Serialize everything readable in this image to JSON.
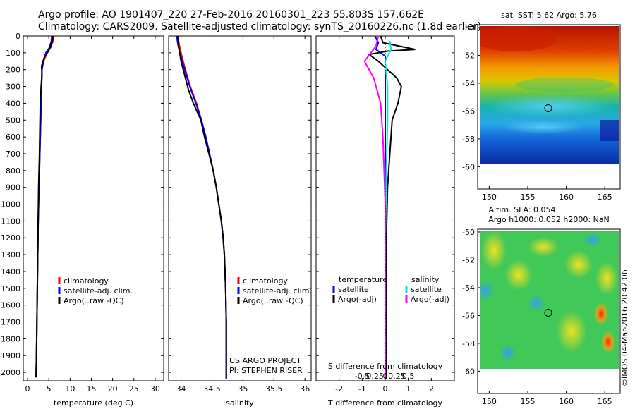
{
  "header": {
    "line1": "Argo profile: AO 1901407_220 27-Feb-2016 20160301_223 55.803S 157.662E",
    "line2": "Climatology: CARS2009. Satellite-adjusted climatology: synTS_20160226.nc (1.8d earlier)"
  },
  "side_stamp": "©IMOS 04-Mar-2016 20:42:06",
  "colors": {
    "climatology": "#ff0000",
    "satellite": "#0000ff",
    "argo": "#000000",
    "salinity_satellite": "#00e5e5",
    "salinity_argo": "#ff00ff"
  },
  "chart_data": [
    {
      "type": "line",
      "panel": "temperature",
      "xlabel": "temperature (deg C)",
      "ylabel": "",
      "xlim": [
        -1,
        32
      ],
      "ylim": [
        2050,
        0
      ],
      "xticks": [
        0,
        5,
        10,
        15,
        20,
        25,
        30
      ],
      "xtick_labels": [
        "0",
        "5",
        "10",
        "15",
        "20",
        "25",
        "30"
      ],
      "yticks": [
        0,
        100,
        200,
        300,
        400,
        500,
        600,
        700,
        800,
        900,
        1000,
        1100,
        1200,
        1300,
        1400,
        1500,
        1600,
        1700,
        1800,
        1900,
        2000
      ],
      "ytick_labels": [
        "0",
        "100",
        "200",
        "300",
        "400",
        "500",
        "600",
        "700",
        "800",
        "900",
        "1000",
        "1100",
        "1200",
        "1300",
        "1400",
        "1500",
        "1600",
        "1700",
        "1800",
        "1900",
        "2000"
      ],
      "legend": [
        "climatology",
        "satellite-adj. clim.",
        "Argo(..raw -QC)"
      ],
      "series": [
        {
          "name": "climatology",
          "color": "#ff0000",
          "points": [
            [
              6.2,
              0
            ],
            [
              6.0,
              30
            ],
            [
              5.4,
              70
            ],
            [
              4.6,
              100
            ],
            [
              3.8,
              150
            ],
            [
              3.4,
              200
            ],
            [
              3.3,
              300
            ],
            [
              3.1,
              500
            ],
            [
              2.9,
              700
            ],
            [
              2.7,
              900
            ],
            [
              2.5,
              1100
            ],
            [
              2.4,
              1300
            ],
            [
              2.3,
              1500
            ],
            [
              2.2,
              1700
            ],
            [
              2.1,
              1900
            ],
            [
              2.0,
              2020
            ]
          ]
        },
        {
          "name": "satellite-adj. clim.",
          "color": "#0000ff",
          "points": [
            [
              5.7,
              0
            ],
            [
              5.6,
              30
            ],
            [
              5.1,
              70
            ],
            [
              4.3,
              100
            ],
            [
              3.7,
              150
            ],
            [
              3.4,
              200
            ],
            [
              3.3,
              300
            ],
            [
              3.1,
              500
            ],
            [
              2.9,
              700
            ],
            [
              2.7,
              900
            ],
            [
              2.5,
              1100
            ],
            [
              2.4,
              1300
            ],
            [
              2.3,
              1500
            ],
            [
              2.2,
              1700
            ],
            [
              2.1,
              1900
            ],
            [
              2.0,
              2030
            ]
          ]
        },
        {
          "name": "Argo(..raw -QC)",
          "color": "#000000",
          "points": [
            [
              6.0,
              0
            ],
            [
              5.8,
              30
            ],
            [
              5.5,
              60
            ],
            [
              4.9,
              90
            ],
            [
              3.9,
              130
            ],
            [
              3.3,
              180
            ],
            [
              3.4,
              230
            ],
            [
              3.2,
              300
            ],
            [
              3.0,
              400
            ],
            [
              2.9,
              550
            ],
            [
              2.8,
              700
            ],
            [
              2.6,
              900
            ],
            [
              2.5,
              1100
            ],
            [
              2.4,
              1300
            ],
            [
              2.3,
              1500
            ],
            [
              2.2,
              1700
            ],
            [
              2.1,
              1900
            ],
            [
              2.0,
              2030
            ]
          ]
        }
      ]
    },
    {
      "type": "line",
      "panel": "salinity",
      "xlabel": "salinity",
      "xlim": [
        33.8,
        36.1
      ],
      "ylim": [
        2050,
        0
      ],
      "xticks": [
        34,
        34.5,
        35,
        35.5,
        36
      ],
      "xtick_labels": [
        "34",
        "34.5",
        "35",
        "35.5",
        "36"
      ],
      "legend": [
        "climatology",
        "satellite-adj. clim.",
        "Argo(..raw -QC)"
      ],
      "annotation": [
        "US ARGO PROJECT",
        "PI: STEPHEN RISER"
      ],
      "series": [
        {
          "name": "climatology",
          "color": "#ff0000",
          "points": [
            [
              33.95,
              0
            ],
            [
              33.97,
              50
            ],
            [
              34.0,
              100
            ],
            [
              34.07,
              200
            ],
            [
              34.15,
              300
            ],
            [
              34.25,
              400
            ],
            [
              34.33,
              500
            ],
            [
              34.4,
              600
            ],
            [
              34.46,
              700
            ],
            [
              34.52,
              800
            ],
            [
              34.57,
              900
            ],
            [
              34.61,
              1000
            ],
            [
              34.65,
              1100
            ],
            [
              34.68,
              1200
            ],
            [
              34.7,
              1300
            ],
            [
              34.71,
              1400
            ],
            [
              34.72,
              1500
            ],
            [
              34.73,
              1700
            ],
            [
              34.73,
              2030
            ]
          ]
        },
        {
          "name": "satellite-adj. clim.",
          "color": "#0000ff",
          "points": [
            [
              33.93,
              0
            ],
            [
              33.95,
              50
            ],
            [
              33.98,
              100
            ],
            [
              34.06,
              200
            ],
            [
              34.14,
              300
            ],
            [
              34.24,
              400
            ],
            [
              34.33,
              500
            ],
            [
              34.4,
              600
            ],
            [
              34.46,
              700
            ],
            [
              34.52,
              800
            ],
            [
              34.57,
              900
            ],
            [
              34.61,
              1000
            ],
            [
              34.65,
              1100
            ],
            [
              34.68,
              1200
            ],
            [
              34.7,
              1300
            ],
            [
              34.71,
              1400
            ],
            [
              34.72,
              1500
            ],
            [
              34.73,
              1700
            ],
            [
              34.73,
              2040
            ]
          ]
        },
        {
          "name": "Argo(..raw -QC)",
          "color": "#000000",
          "points": [
            [
              33.95,
              0
            ],
            [
              33.96,
              60
            ],
            [
              34.0,
              150
            ],
            [
              34.05,
              220
            ],
            [
              34.12,
              320
            ],
            [
              34.2,
              400
            ],
            [
              34.32,
              500
            ],
            [
              34.38,
              600
            ],
            [
              34.45,
              700
            ],
            [
              34.52,
              800
            ],
            [
              34.57,
              900
            ],
            [
              34.61,
              1000
            ],
            [
              34.65,
              1100
            ],
            [
              34.68,
              1200
            ],
            [
              34.7,
              1300
            ],
            [
              34.71,
              1400
            ],
            [
              34.72,
              1500
            ],
            [
              34.73,
              1700
            ],
            [
              34.73,
              2040
            ]
          ]
        }
      ]
    },
    {
      "type": "line",
      "panel": "difference",
      "xlabel": "T difference from climatology",
      "xlabel_top": "S difference from climatology",
      "xlim": [
        -3,
        3
      ],
      "ylim": [
        2050,
        0
      ],
      "xticks": [
        -2,
        -1,
        0,
        1,
        2
      ],
      "xtick_labels": [
        "-2",
        "-1",
        "0",
        "1",
        "2"
      ],
      "sticks": [
        -1,
        -0.5,
        0,
        0.5,
        1
      ],
      "stick_labels": [
        "-0.5",
        "-0.25",
        "0",
        "0.25",
        "0.5"
      ],
      "legend_temperature": {
        "title": "temperature",
        "items": [
          "satellite",
          "Argo(-adj)"
        ]
      },
      "legend_salinity": {
        "title": "salinity",
        "items": [
          "satellite",
          "Argo(-adj)"
        ]
      },
      "series": [
        {
          "name": "T satellite",
          "color": "#0000ff",
          "points": [
            [
              -0.45,
              0
            ],
            [
              -0.3,
              40
            ],
            [
              -0.4,
              80
            ],
            [
              0.0,
              120
            ],
            [
              0.0,
              300
            ],
            [
              0.0,
              800
            ],
            [
              0.0,
              1500
            ],
            [
              0.0,
              2040
            ]
          ]
        },
        {
          "name": "T Argo(-adj)",
          "color": "#000000",
          "points": [
            [
              -0.2,
              0
            ],
            [
              -0.1,
              40
            ],
            [
              1.3,
              80
            ],
            [
              0.1,
              90
            ],
            [
              -0.7,
              110
            ],
            [
              -0.3,
              150
            ],
            [
              0.5,
              250
            ],
            [
              0.7,
              300
            ],
            [
              0.55,
              400
            ],
            [
              0.3,
              500
            ],
            [
              0.2,
              700
            ],
            [
              0.1,
              900
            ],
            [
              0.05,
              1200
            ],
            [
              0.05,
              1600
            ],
            [
              0.05,
              2040
            ]
          ]
        },
        {
          "name": "S satellite",
          "color": "#00e5e5",
          "points": [
            [
              0.2,
              30
            ],
            [
              0.25,
              80
            ],
            [
              0.0,
              150
            ],
            [
              0.1,
              300
            ],
            [
              0.1,
              500
            ],
            [
              0.05,
              800
            ],
            [
              0.0,
              1200
            ],
            [
              0.0,
              1600
            ],
            [
              0.0,
              2040
            ]
          ]
        },
        {
          "name": "S Argo(-adj)",
          "color": "#ff00ff",
          "points": [
            [
              -0.3,
              0
            ],
            [
              -0.4,
              60
            ],
            [
              -0.9,
              150
            ],
            [
              -0.5,
              250
            ],
            [
              -0.2,
              400
            ],
            [
              -0.1,
              600
            ],
            [
              -0.05,
              800
            ],
            [
              0.0,
              1000
            ],
            [
              0.0,
              1300
            ],
            [
              0.0,
              1600
            ],
            [
              0.0,
              2040
            ]
          ]
        }
      ]
    },
    {
      "type": "heatmap",
      "panel": "sst-map",
      "title": "sat. SST: 5.62 Argo: 5.76",
      "xlim": [
        148.5,
        167
      ],
      "ylim": [
        -61.6,
        -49.8
      ],
      "xticks": [
        150,
        155,
        160,
        165
      ],
      "xtick_labels": [
        "150",
        "155",
        "160",
        "165"
      ],
      "yticks": [
        -50,
        -52,
        -54,
        -56,
        -58,
        -60
      ],
      "ytick_labels": [
        "-50",
        "-52",
        "-54",
        "-56",
        "-58",
        "-60"
      ],
      "data_extent": {
        "lon": [
          149.0,
          166.5
        ],
        "lat": [
          -60,
          -50
        ]
      },
      "marker": [
        157.66,
        -55.8
      ]
    },
    {
      "type": "heatmap",
      "panel": "sla-map",
      "title": "Altim. SLA: 0.054",
      "subtitle": "Argo h1000: 0.052 h2000: NaN",
      "xlim": [
        148.5,
        167
      ],
      "ylim": [
        -61.6,
        -49.8
      ],
      "xticks": [
        150,
        155,
        160,
        165
      ],
      "xtick_labels": [
        "150",
        "155",
        "160",
        "165"
      ],
      "yticks": [
        -50,
        -52,
        -54,
        -56,
        -58,
        -60
      ],
      "ytick_labels": [
        "-50",
        "-52",
        "-54",
        "-56",
        "-58",
        "-60"
      ],
      "data_extent": {
        "lon": [
          149.0,
          166.5
        ],
        "lat": [
          -60,
          -50
        ]
      },
      "marker": [
        157.66,
        -55.8
      ]
    }
  ]
}
